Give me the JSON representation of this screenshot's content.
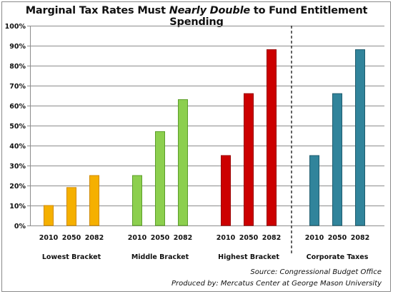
{
  "title": {
    "before": "Marginal Tax Rates Must ",
    "emphasis": "Nearly Double",
    "after": " to Fund Entitlement Spending"
  },
  "source_line": "Source: Congressional Budget Office",
  "produced_line": "Produced by: Mercatus Center at George Mason University",
  "chart_data": {
    "type": "bar",
    "title": "Marginal Tax Rates Must Nearly Double to Fund Entitlement Spending",
    "xlabel": "",
    "ylabel": "",
    "ylim": [
      0,
      100
    ],
    "y_ticks": [
      "0%",
      "10%",
      "20%",
      "30%",
      "40%",
      "50%",
      "60%",
      "70%",
      "80%",
      "90%",
      "100%"
    ],
    "grid": true,
    "legend": "none",
    "groups": [
      {
        "name": "Lowest Bracket",
        "categories": [
          "2010",
          "2050",
          "2082"
        ],
        "values": [
          10,
          19,
          25
        ],
        "color": "#f5b000",
        "border": "#d08a00"
      },
      {
        "name": "Middle Bracket",
        "categories": [
          "2010",
          "2050",
          "2082"
        ],
        "values": [
          25,
          47,
          63
        ],
        "color": "#8ccf4e",
        "border": "#5c9e2a"
      },
      {
        "name": "Highest Bracket",
        "categories": [
          "2010",
          "2050",
          "2082"
        ],
        "values": [
          35,
          66,
          88
        ],
        "color": "#cc0000",
        "border": "#990000"
      },
      {
        "name": "Corporate Taxes",
        "categories": [
          "2010",
          "2050",
          "2082"
        ],
        "values": [
          35,
          66,
          88
        ],
        "color": "#31849b",
        "border": "#1f5c6e"
      }
    ],
    "divider_before_group": 3
  }
}
